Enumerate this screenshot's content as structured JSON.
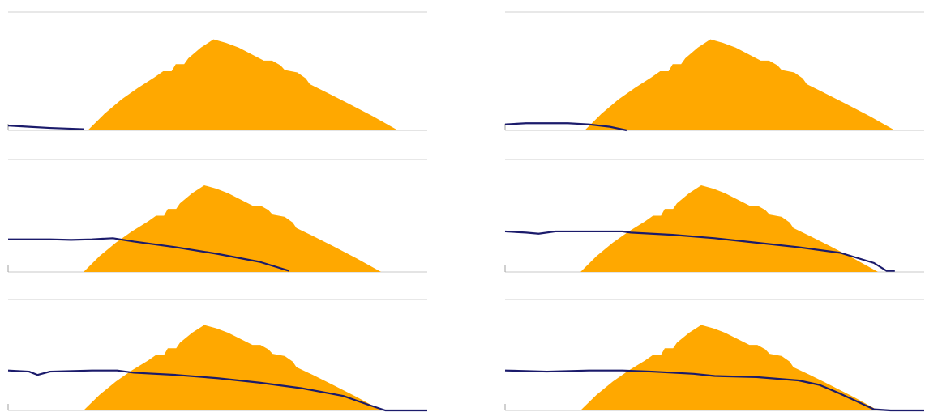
{
  "chart_data": [
    {
      "type": "area",
      "xlim": [
        0,
        100
      ],
      "ylim": [
        0,
        100
      ],
      "color": "#ffa800",
      "x": [
        19,
        23,
        27,
        31,
        35,
        37,
        39,
        40,
        42,
        43,
        46,
        49,
        52,
        55,
        61,
        63,
        65,
        66,
        69,
        71,
        72,
        76,
        81,
        87,
        93
      ],
      "values": [
        0,
        14,
        26,
        36,
        45,
        50,
        50,
        56,
        56,
        61,
        70,
        77,
        74,
        70,
        59,
        59,
        55,
        51,
        49,
        44,
        39,
        32,
        23,
        12,
        0
      ],
      "series": [
        {
          "color": "#1b1b6b",
          "x": [
            0,
            5,
            10,
            18
          ],
          "values": [
            4,
            3,
            2,
            1
          ]
        }
      ]
    },
    {
      "type": "area",
      "xlim": [
        0,
        100
      ],
      "ylim": [
        0,
        100
      ],
      "color": "#ffa800",
      "x": [
        19,
        23,
        27,
        31,
        35,
        37,
        39,
        40,
        42,
        43,
        46,
        49,
        52,
        55,
        61,
        63,
        65,
        66,
        69,
        71,
        72,
        76,
        81,
        87,
        93
      ],
      "values": [
        0,
        14,
        26,
        36,
        45,
        50,
        50,
        56,
        56,
        61,
        70,
        77,
        74,
        70,
        59,
        59,
        55,
        51,
        49,
        44,
        39,
        32,
        23,
        12,
        0
      ],
      "series": [
        {
          "color": "#1b1b6b",
          "x": [
            0,
            5,
            10,
            15,
            20,
            25,
            29
          ],
          "values": [
            5,
            6,
            6,
            6,
            5,
            3,
            0
          ]
        }
      ]
    },
    {
      "type": "area",
      "xlim": [
        0,
        100
      ],
      "ylim": [
        0,
        100
      ],
      "color": "#ffa800",
      "x": [
        18,
        21.8,
        25.7,
        29.5,
        33.4,
        35.3,
        37.2,
        38.1,
        40.1,
        41,
        43.9,
        46.8,
        49.7,
        52.5,
        58.3,
        60.2,
        62.1,
        63.1,
        66,
        67.9,
        68.8,
        72.7,
        77.5,
        83.2,
        89
      ],
      "values": [
        0,
        14,
        26,
        36,
        45,
        50,
        50,
        56,
        56,
        61,
        70,
        77,
        74,
        70,
        59,
        59,
        55,
        51,
        49,
        44,
        39,
        32,
        23,
        12,
        0
      ],
      "series": [
        {
          "color": "#1b1b6b",
          "x": [
            0,
            5,
            10,
            15,
            20,
            25,
            30,
            40,
            50,
            60,
            67
          ],
          "values": [
            29,
            29,
            29,
            28.5,
            29,
            30,
            27,
            22,
            16,
            9,
            1
          ]
        }
      ]
    },
    {
      "type": "area",
      "xlim": [
        0,
        100
      ],
      "ylim": [
        0,
        100
      ],
      "color": "#ffa800",
      "x": [
        18,
        21.8,
        25.7,
        29.5,
        33.4,
        35.3,
        37.2,
        38.1,
        40.1,
        41,
        43.9,
        46.8,
        49.7,
        52.5,
        58.3,
        60.2,
        62.1,
        63.1,
        66,
        67.9,
        68.8,
        72.7,
        77.5,
        83.2,
        89
      ],
      "values": [
        0,
        14,
        26,
        36,
        45,
        50,
        50,
        56,
        56,
        61,
        70,
        77,
        74,
        70,
        59,
        59,
        55,
        51,
        49,
        44,
        39,
        32,
        23,
        12,
        0
      ],
      "series": [
        {
          "color": "#1b1b6b",
          "x": [
            0,
            5,
            8,
            12,
            20,
            28,
            30,
            40,
            50,
            60,
            70,
            80,
            88,
            91,
            93
          ],
          "values": [
            36,
            35,
            34,
            36,
            36,
            36,
            35,
            33,
            30,
            26,
            22,
            17,
            8,
            1,
            1
          ]
        }
      ]
    },
    {
      "type": "area",
      "xlim": [
        0,
        100
      ],
      "ylim": [
        0,
        100
      ],
      "color": "#ffa800",
      "x": [
        18,
        21.8,
        25.7,
        29.5,
        33.4,
        35.3,
        37.2,
        38.1,
        40.1,
        41,
        43.9,
        46.8,
        49.7,
        52.5,
        58.3,
        60.2,
        62.1,
        63.1,
        66,
        67.9,
        68.8,
        72.7,
        77.5,
        83.2,
        89
      ],
      "values": [
        0,
        14,
        26,
        36,
        45,
        50,
        50,
        56,
        56,
        61,
        70,
        77,
        74,
        70,
        59,
        59,
        55,
        51,
        49,
        44,
        39,
        32,
        23,
        12,
        0
      ],
      "series": [
        {
          "color": "#1b1b6b",
          "x": [
            0,
            5,
            7,
            10,
            20,
            26,
            30,
            40,
            50,
            60,
            70,
            80,
            86,
            90,
            100
          ],
          "values": [
            36,
            35,
            32,
            35,
            36,
            36,
            34,
            32,
            29,
            25,
            20,
            13,
            5,
            0,
            0
          ]
        }
      ]
    },
    {
      "type": "area",
      "xlim": [
        0,
        100
      ],
      "ylim": [
        0,
        100
      ],
      "color": "#ffa800",
      "x": [
        18,
        21.8,
        25.7,
        29.5,
        33.4,
        35.3,
        37.2,
        38.1,
        40.1,
        41,
        43.9,
        46.8,
        49.7,
        52.5,
        58.3,
        60.2,
        62.1,
        63.1,
        66,
        67.9,
        68.8,
        72.7,
        77.5,
        83.2,
        89
      ],
      "values": [
        0,
        14,
        26,
        36,
        45,
        50,
        50,
        56,
        56,
        61,
        70,
        77,
        74,
        70,
        59,
        59,
        55,
        51,
        49,
        44,
        39,
        32,
        23,
        12,
        0
      ],
      "series": [
        {
          "color": "#1b1b6b",
          "x": [
            0,
            10,
            20,
            28,
            35,
            45,
            50,
            60,
            70,
            75,
            80,
            84,
            88,
            92,
            100
          ],
          "values": [
            36,
            35,
            36,
            36,
            35,
            33,
            31,
            30,
            27,
            23,
            15,
            8,
            1,
            0,
            0
          ]
        }
      ]
    }
  ]
}
